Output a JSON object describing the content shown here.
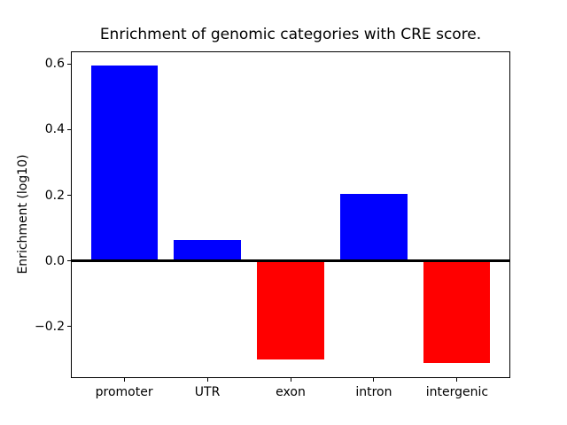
{
  "chart_data": {
    "type": "bar",
    "title": "Enrichment of genomic categories with CRE score.",
    "ylabel": "Enrichment (log10)",
    "xlabel": "",
    "categories": [
      "promoter",
      "UTR",
      "exon",
      "intron",
      "intergenic"
    ],
    "values": [
      0.595,
      0.065,
      -0.3,
      0.205,
      -0.312
    ],
    "bar_colors": [
      "#0000ff",
      "#0000ff",
      "#ff0000",
      "#0000ff",
      "#ff0000"
    ],
    "positive_color": "#0000ff",
    "negative_color": "#ff0000",
    "yticks": [
      0.6,
      0.4,
      0.2,
      0.0,
      -0.2
    ],
    "ytick_labels": [
      "0.6",
      "0.4",
      "0.2",
      "0.0",
      "−0.2"
    ],
    "ylim": [
      -0.357,
      0.639
    ],
    "xlim": [
      -0.64,
      4.64
    ],
    "bar_width": 0.8,
    "grid": false,
    "legend": null,
    "zero_line": true,
    "zero_line_color": "#000000",
    "spine_color": "#000000",
    "background_color": "#ffffff"
  }
}
